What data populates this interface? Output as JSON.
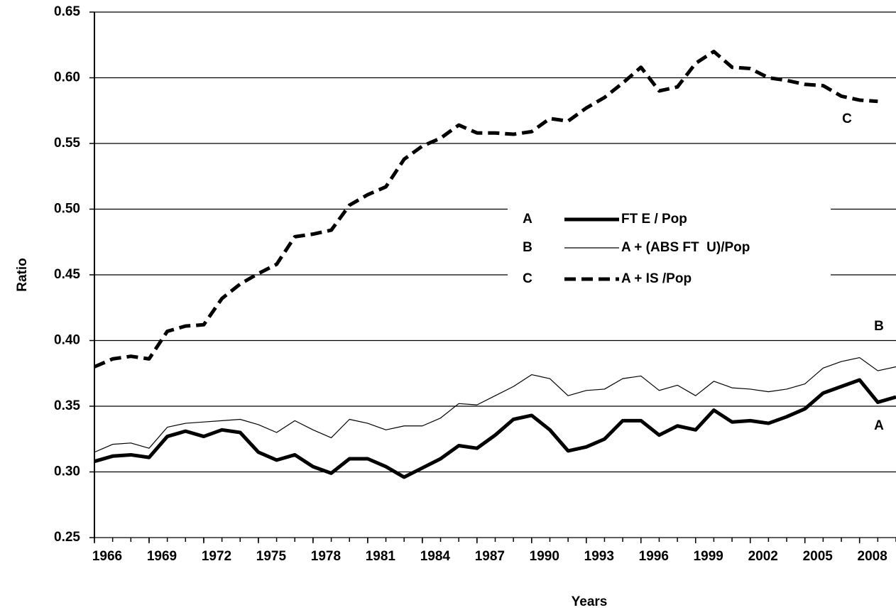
{
  "chart_data": {
    "type": "line",
    "x_label": "Years",
    "y_label": "Ratio",
    "x": [
      1966,
      1967,
      1968,
      1969,
      1970,
      1971,
      1972,
      1973,
      1974,
      1975,
      1976,
      1977,
      1978,
      1979,
      1980,
      1981,
      1982,
      1983,
      1984,
      1985,
      1986,
      1987,
      1988,
      1989,
      1990,
      1991,
      1992,
      1993,
      1994,
      1995,
      1996,
      1997,
      1998,
      1999,
      2000,
      2001,
      2002,
      2003,
      2004,
      2005,
      2006,
      2007,
      2008,
      2009,
      2010
    ],
    "xlim": [
      1966,
      2010
    ],
    "xticks": [
      1966,
      1969,
      1972,
      1975,
      1978,
      1981,
      1984,
      1987,
      1990,
      1993,
      1996,
      1999,
      2002,
      2005,
      2008
    ],
    "ylim": [
      0.25,
      0.65
    ],
    "yticks": [
      0.25,
      {
        "value": 0.3,
        "label": "0.30"
      },
      0.35,
      {
        "value": 0.4,
        "label": "0.40"
      },
      0.45,
      {
        "value": 0.5,
        "label": "0.50"
      },
      0.55,
      {
        "value": 0.6,
        "label": "0.60"
      },
      0.65
    ],
    "grid": true,
    "series": [
      {
        "name": "FT E / Pop",
        "label": "A",
        "color": "#000000",
        "style": "thick",
        "values": [
          0.308,
          0.312,
          0.313,
          0.311,
          0.327,
          0.331,
          0.327,
          0.332,
          0.33,
          0.315,
          0.309,
          0.313,
          0.304,
          0.299,
          0.31,
          0.31,
          0.304,
          0.296,
          0.303,
          0.31,
          0.32,
          0.318,
          0.328,
          0.34,
          0.343,
          0.332,
          0.316,
          0.319,
          0.325,
          0.339,
          0.339,
          0.328,
          0.335,
          0.332,
          0.347,
          0.338,
          0.339,
          0.337,
          0.342,
          0.348,
          0.36,
          0.365,
          0.37,
          0.353,
          0.357
        ]
      },
      {
        "name": "A + (ABS FT  U)/Pop",
        "label": "B",
        "color": "#000000",
        "style": "thin",
        "values": [
          0.315,
          0.321,
          0.322,
          0.318,
          0.334,
          0.337,
          0.338,
          0.339,
          0.34,
          0.336,
          0.33,
          0.339,
          0.332,
          0.326,
          0.34,
          0.337,
          0.332,
          0.335,
          0.335,
          0.341,
          0.352,
          0.351,
          0.358,
          0.365,
          0.374,
          0.371,
          0.358,
          0.362,
          0.363,
          0.371,
          0.373,
          0.362,
          0.366,
          0.358,
          0.369,
          0.364,
          0.363,
          0.361,
          0.363,
          0.367,
          0.379,
          0.384,
          0.387,
          0.377,
          0.38
        ]
      },
      {
        "name": "A + IS /Pop",
        "label": "C",
        "color": "#000000",
        "style": "dashed",
        "values": [
          0.38,
          0.386,
          0.388,
          0.386,
          0.407,
          0.411,
          0.412,
          0.432,
          0.443,
          0.451,
          0.458,
          0.479,
          0.481,
          0.484,
          0.503,
          0.511,
          0.517,
          0.538,
          0.548,
          0.554,
          0.564,
          0.558,
          0.558,
          0.557,
          0.559,
          0.569,
          0.567,
          0.577,
          0.585,
          0.596,
          0.608,
          0.59,
          0.593,
          0.611,
          0.62,
          0.608,
          0.607,
          0.6,
          0.598,
          0.595,
          0.594,
          0.586,
          0.583,
          0.582,
          null
        ]
      }
    ]
  }
}
